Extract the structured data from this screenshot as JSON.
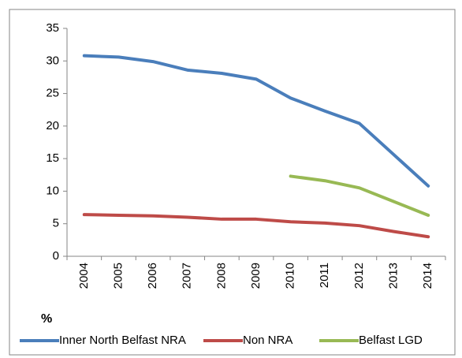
{
  "chart_data": {
    "type": "line",
    "y_label": "%",
    "categories": [
      "2004",
      "2005",
      "2006",
      "2007",
      "2008",
      "2009",
      "2010",
      "2011",
      "2012",
      "2013",
      "2014"
    ],
    "series": [
      {
        "name": "Inner North Belfast NRA",
        "color": "#4a7ebb",
        "values": [
          30.8,
          30.6,
          29.9,
          28.6,
          28.1,
          27.2,
          24.3,
          22.3,
          20.4,
          15.6,
          10.8
        ]
      },
      {
        "name": "Non NRA",
        "color": "#be4b48",
        "values": [
          6.4,
          6.3,
          6.2,
          6.0,
          5.7,
          5.7,
          5.3,
          5.1,
          4.7,
          3.8,
          3.0
        ]
      },
      {
        "name": "Belfast LGD",
        "color": "#98b954",
        "values": [
          null,
          null,
          null,
          null,
          null,
          null,
          12.3,
          11.6,
          10.5,
          8.4,
          6.3
        ]
      }
    ],
    "ylim": [
      0,
      35
    ],
    "yticks": [
      0,
      5,
      10,
      15,
      20,
      25,
      30,
      35
    ],
    "grid": false,
    "legend": "bottom"
  }
}
